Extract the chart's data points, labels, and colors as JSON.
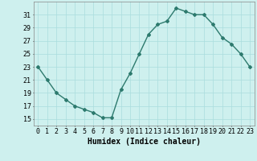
{
  "x": [
    0,
    1,
    2,
    3,
    4,
    5,
    6,
    7,
    8,
    9,
    10,
    11,
    12,
    13,
    14,
    15,
    16,
    17,
    18,
    19,
    20,
    21,
    22,
    23
  ],
  "y": [
    23,
    21,
    19,
    18,
    17,
    16.5,
    16,
    15.2,
    15.2,
    19.5,
    22,
    25,
    28,
    29.5,
    30,
    32,
    31.5,
    31,
    31,
    29.5,
    27.5,
    26.5,
    25,
    23
  ],
  "line_color": "#2d7a6e",
  "marker": "D",
  "marker_size": 2,
  "bg_color": "#cef0ee",
  "grid_color": "#aadddd",
  "xlabel": "Humidex (Indice chaleur)",
  "xlim": [
    -0.5,
    23.5
  ],
  "ylim": [
    14.0,
    33.0
  ],
  "yticks": [
    15,
    17,
    19,
    21,
    23,
    25,
    27,
    29,
    31
  ],
  "xticks": [
    0,
    1,
    2,
    3,
    4,
    5,
    6,
    7,
    8,
    9,
    10,
    11,
    12,
    13,
    14,
    15,
    16,
    17,
    18,
    19,
    20,
    21,
    22,
    23
  ],
  "xlabel_fontsize": 7,
  "tick_fontsize": 6,
  "line_width": 1.0
}
